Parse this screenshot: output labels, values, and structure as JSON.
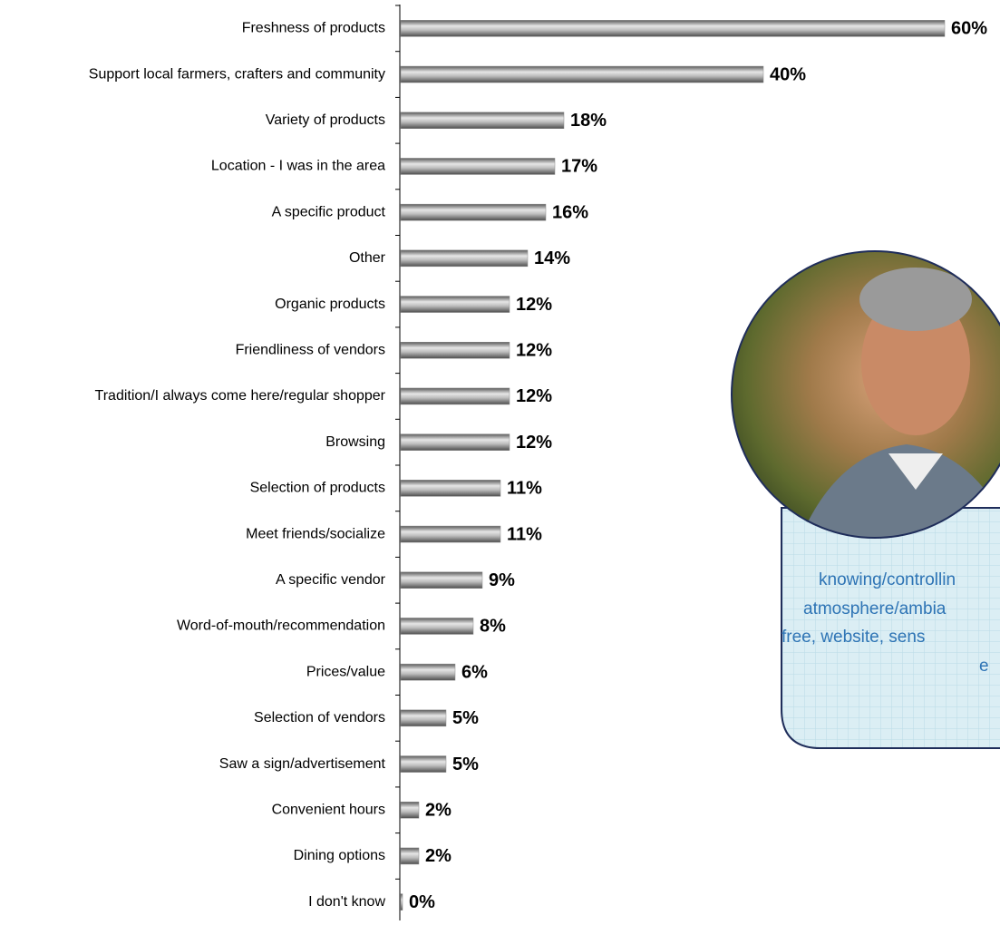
{
  "chart_data": {
    "type": "bar",
    "orientation": "horizontal",
    "categories": [
      "Freshness of products",
      "Support local farmers, crafters and community",
      "Variety of products",
      "Location - I was in the area",
      "A specific product",
      "Other",
      "Organic products",
      "Friendliness of vendors",
      "Tradition/I always come here/regular shopper",
      "Browsing",
      "Selection of products",
      "Meet friends/socialize",
      "A specific vendor",
      "Word-of-mouth/recommendation",
      "Prices/value",
      "Selection of vendors",
      "Saw a sign/advertisement",
      "Convenient hours",
      "Dining options",
      "I don't know"
    ],
    "values": [
      60,
      40,
      18,
      17,
      16,
      14,
      12,
      12,
      12,
      12,
      11,
      11,
      9,
      8,
      6,
      5,
      5,
      2,
      2,
      0
    ],
    "value_labels": [
      "60%",
      "40%",
      "18%",
      "17%",
      "16%",
      "14%",
      "12%",
      "12%",
      "12%",
      "12%",
      "11%",
      "11%",
      "9%",
      "8%",
      "6%",
      "5%",
      "5%",
      "2%",
      "2%",
      "0%"
    ],
    "color": "#8c8c8c",
    "annotations": [
      "knowing/controllin",
      "atmosphere/ambia",
      "free,  website, sens",
      "e"
    ]
  }
}
